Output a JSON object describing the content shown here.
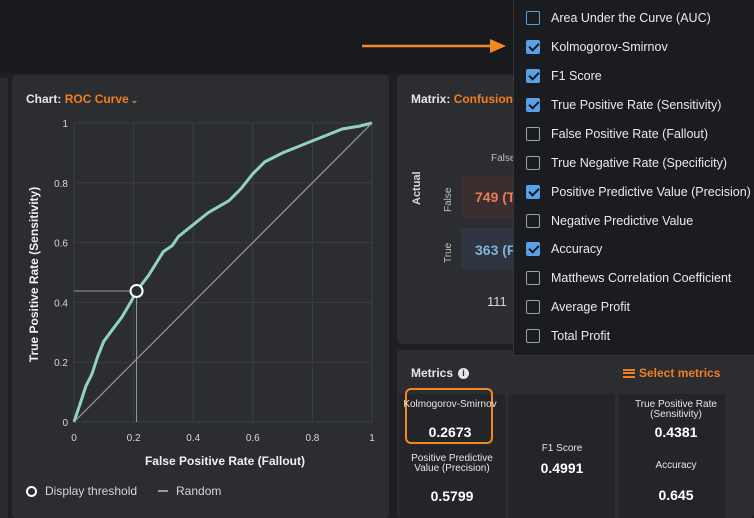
{
  "chart_panel": {
    "label": "Chart:",
    "selected": "ROC Curve",
    "legend_threshold": "Display threshold",
    "legend_random": "Random"
  },
  "chart_data": {
    "type": "line",
    "title": "ROC Curve",
    "xlabel": "False Positive Rate (Fallout)",
    "ylabel": "True Positive Rate (Sensitivity)",
    "xlim": [
      0,
      1
    ],
    "ylim": [
      0,
      1
    ],
    "x_ticks": [
      "0",
      "0.2",
      "0.4",
      "0.6",
      "0.8",
      "1"
    ],
    "y_ticks": [
      "0",
      "0.2",
      "0.4",
      "0.6",
      "0.8",
      "1"
    ],
    "series": [
      {
        "name": "ROC",
        "color": "#8fd3bd",
        "points": [
          [
            0,
            0
          ],
          [
            0.02,
            0.06
          ],
          [
            0.04,
            0.12
          ],
          [
            0.06,
            0.16
          ],
          [
            0.08,
            0.22
          ],
          [
            0.1,
            0.27
          ],
          [
            0.13,
            0.31
          ],
          [
            0.16,
            0.35
          ],
          [
            0.19,
            0.4
          ],
          [
            0.21,
            0.4381
          ],
          [
            0.25,
            0.49
          ],
          [
            0.3,
            0.57
          ],
          [
            0.33,
            0.59
          ],
          [
            0.35,
            0.62
          ],
          [
            0.4,
            0.66
          ],
          [
            0.45,
            0.7
          ],
          [
            0.52,
            0.74
          ],
          [
            0.56,
            0.78
          ],
          [
            0.6,
            0.83
          ],
          [
            0.64,
            0.87
          ],
          [
            0.7,
            0.9
          ],
          [
            0.75,
            0.92
          ],
          [
            0.8,
            0.94
          ],
          [
            0.85,
            0.96
          ],
          [
            0.9,
            0.98
          ],
          [
            0.96,
            0.99
          ],
          [
            1,
            1
          ]
        ]
      },
      {
        "name": "Random",
        "color": "#9a9a9a",
        "points": [
          [
            0,
            0
          ],
          [
            1,
            1
          ]
        ]
      }
    ],
    "threshold": {
      "x": 0.21,
      "y": 0.4381
    }
  },
  "matrix_panel": {
    "label": "Matrix:",
    "selected": "Confusion",
    "col_header": "False",
    "actual_label": "Actual",
    "row_false": "False",
    "row_true": "True",
    "cell_false": "749 (T",
    "cell_true": "363 (F",
    "total": "111"
  },
  "metrics_panel": {
    "title": "Metrics",
    "info_icon": "i",
    "select_label": "Select metrics",
    "items": [
      {
        "label": "Kolmogorov-Smirnov",
        "value": "0.2673"
      },
      {
        "label": "Positive Predictive Value (Precision)",
        "value": "0.5799"
      },
      {
        "label": "F1 Score",
        "value": "0.4991"
      },
      {
        "label": "True Positive Rate (Sensitivity)",
        "value": "0.4381"
      },
      {
        "label": "Accuracy",
        "value": "0.645"
      }
    ]
  },
  "dropdown": {
    "options": [
      {
        "label": "Area Under the Curve (AUC)",
        "checked": false
      },
      {
        "label": "Kolmogorov-Smirnov",
        "checked": true
      },
      {
        "label": "F1 Score",
        "checked": true
      },
      {
        "label": "True Positive Rate (Sensitivity)",
        "checked": true
      },
      {
        "label": "False Positive Rate (Fallout)",
        "checked": false
      },
      {
        "label": "True Negative Rate (Specificity)",
        "checked": false
      },
      {
        "label": "Positive Predictive Value (Precision)",
        "checked": true
      },
      {
        "label": "Negative Predictive Value",
        "checked": false
      },
      {
        "label": "Accuracy",
        "checked": true
      },
      {
        "label": "Matthews Correlation Coefficient",
        "checked": false
      },
      {
        "label": "Average Profit",
        "checked": false
      },
      {
        "label": "Total Profit",
        "checked": false
      }
    ]
  },
  "colors": {
    "accent": "#f07e1f",
    "checkbox": "#5aa0e6",
    "roc": "#8fd3bd"
  }
}
